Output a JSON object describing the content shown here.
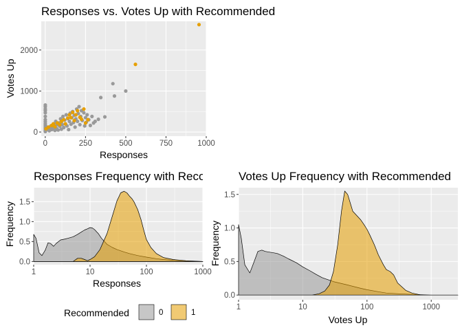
{
  "chart_data": [
    {
      "type": "scatter",
      "title": "Responses vs. Votes Up with Recommended",
      "xlabel": "Responses",
      "ylabel": "Votes Up",
      "xlim": [
        -25,
        1000
      ],
      "ylim": [
        -100,
        2700
      ],
      "xticks": [
        0,
        250,
        500,
        750,
        1000
      ],
      "yticks": [
        0,
        1000,
        2000
      ],
      "grid": true,
      "series": [
        {
          "name": "0",
          "color": "#999999",
          "points": [
            [
              0,
              660
            ],
            [
              0,
              620
            ],
            [
              0,
              560
            ],
            [
              0,
              520
            ],
            [
              0,
              470
            ],
            [
              0,
              380
            ],
            [
              0,
              300
            ],
            [
              0,
              250
            ],
            [
              0,
              200
            ],
            [
              0,
              160
            ],
            [
              0,
              120
            ],
            [
              0,
              80
            ],
            [
              0,
              40
            ],
            [
              0,
              10
            ],
            [
              10,
              120
            ],
            [
              15,
              60
            ],
            [
              20,
              100
            ],
            [
              25,
              30
            ],
            [
              30,
              90
            ],
            [
              35,
              150
            ],
            [
              40,
              60
            ],
            [
              45,
              110
            ],
            [
              50,
              80
            ],
            [
              55,
              200
            ],
            [
              60,
              40
            ],
            [
              60,
              130
            ],
            [
              65,
              260
            ],
            [
              70,
              90
            ],
            [
              75,
              180
            ],
            [
              80,
              50
            ],
            [
              85,
              220
            ],
            [
              90,
              140
            ],
            [
              95,
              320
            ],
            [
              100,
              70
            ],
            [
              100,
              240
            ],
            [
              105,
              180
            ],
            [
              110,
              380
            ],
            [
              115,
              110
            ],
            [
              120,
              290
            ],
            [
              125,
              200
            ],
            [
              130,
              420
            ],
            [
              135,
              150
            ],
            [
              140,
              330
            ],
            [
              145,
              60
            ],
            [
              150,
              260
            ],
            [
              155,
              460
            ],
            [
              160,
              190
            ],
            [
              165,
              350
            ],
            [
              170,
              500
            ],
            [
              175,
              230
            ],
            [
              180,
              410
            ],
            [
              185,
              120
            ],
            [
              190,
              320
            ],
            [
              195,
              560
            ],
            [
              200,
              260
            ],
            [
              205,
              450
            ],
            [
              210,
              620
            ],
            [
              215,
              180
            ],
            [
              220,
              380
            ],
            [
              225,
              520
            ],
            [
              230,
              280
            ],
            [
              240,
              470
            ],
            [
              245,
              150
            ],
            [
              250,
              350
            ],
            [
              255,
              240
            ],
            [
              260,
              420
            ],
            [
              270,
              300
            ],
            [
              280,
              160
            ],
            [
              290,
              380
            ],
            [
              300,
              220
            ],
            [
              310,
              260
            ],
            [
              330,
              310
            ],
            [
              345,
              840
            ],
            [
              370,
              370
            ],
            [
              420,
              1180
            ],
            [
              430,
              880
            ],
            [
              500,
              1000
            ]
          ]
        },
        {
          "name": "1",
          "color": "#E69F00",
          "points": [
            [
              5,
              80
            ],
            [
              20,
              120
            ],
            [
              40,
              160
            ],
            [
              50,
              200
            ],
            [
              60,
              130
            ],
            [
              75,
              220
            ],
            [
              90,
              180
            ],
            [
              100,
              260
            ],
            [
              115,
              300
            ],
            [
              125,
              200
            ],
            [
              140,
              340
            ],
            [
              150,
              420
            ],
            [
              160,
              350
            ],
            [
              170,
              480
            ],
            [
              180,
              280
            ],
            [
              190,
              420
            ],
            [
              200,
              520
            ],
            [
              215,
              360
            ],
            [
              225,
              310
            ],
            [
              240,
              560
            ],
            [
              250,
              220
            ],
            [
              265,
              300
            ],
            [
              560,
              1650
            ],
            [
              955,
              2620
            ]
          ]
        }
      ]
    },
    {
      "type": "area",
      "title": "Responses Frequency with Recommended",
      "xlabel": "Responses",
      "ylabel": "Frequency",
      "xscale": "log10",
      "xlim": [
        1,
        1000
      ],
      "ylim": [
        -0.08,
        1.85
      ],
      "xticks": [
        1,
        10,
        100,
        1000
      ],
      "xtick_labels": [
        "1",
        "10",
        "100",
        "1000"
      ],
      "yticks": [
        0,
        0.5,
        1,
        1.5
      ],
      "ytick_labels": [
        "0.0",
        "0.5",
        "1.0",
        "1.5"
      ],
      "grid": true,
      "series": [
        {
          "name": "0",
          "color": "#999999",
          "x": [
            1,
            1.1,
            1.25,
            1.4,
            1.6,
            1.8,
            2.0,
            2.25,
            2.5,
            3,
            3.5,
            4,
            5,
            6,
            7,
            8,
            9,
            10,
            11,
            12,
            14,
            16,
            20,
            25,
            30,
            40,
            50,
            70,
            100,
            150,
            200,
            300,
            500,
            1000
          ],
          "y": [
            0.68,
            0.58,
            0.22,
            0.15,
            0.28,
            0.47,
            0.45,
            0.38,
            0.45,
            0.54,
            0.56,
            0.58,
            0.62,
            0.68,
            0.74,
            0.79,
            0.82,
            0.85,
            0.84,
            0.8,
            0.7,
            0.58,
            0.43,
            0.35,
            0.3,
            0.24,
            0.2,
            0.15,
            0.11,
            0.07,
            0.05,
            0.03,
            0.01,
            0.0
          ]
        },
        {
          "name": "1",
          "color": "#E69F00",
          "x": [
            1,
            5,
            6,
            7,
            8,
            9,
            10,
            12,
            15,
            20,
            25,
            30,
            35,
            40,
            45,
            50,
            55,
            60,
            70,
            80,
            90,
            100,
            120,
            150,
            200,
            300,
            500,
            1000
          ],
          "y": [
            0,
            0,
            0.08,
            0.08,
            0.05,
            0.02,
            0.05,
            0.12,
            0.3,
            0.7,
            1.15,
            1.52,
            1.72,
            1.76,
            1.72,
            1.64,
            1.58,
            1.5,
            1.3,
            1.05,
            0.78,
            0.55,
            0.35,
            0.2,
            0.1,
            0.05,
            0.02,
            0.0
          ]
        }
      ]
    },
    {
      "type": "area",
      "title": "Votes Up Frequency with Recommended",
      "xlabel": "Votes Up",
      "ylabel": "Frequency",
      "xscale": "log10",
      "xlim": [
        1,
        2600
      ],
      "ylim": [
        -0.07,
        1.6
      ],
      "xticks": [
        1,
        10,
        100,
        1000
      ],
      "xtick_labels": [
        "1",
        "10",
        "100",
        "1000"
      ],
      "yticks": [
        0,
        0.5,
        1,
        1.5
      ],
      "ytick_labels": [
        "0.0",
        "0.5",
        "1.0",
        "1.5"
      ],
      "grid": true,
      "series": [
        {
          "name": "0",
          "color": "#999999",
          "x": [
            1,
            1.1,
            1.25,
            1.5,
            1.75,
            2,
            2.3,
            2.6,
            3,
            3.5,
            4,
            5,
            6,
            8,
            10,
            13,
            16,
            20,
            30,
            50,
            80,
            100,
            150,
            200,
            300,
            500,
            1000,
            2600
          ],
          "y": [
            1.05,
            0.85,
            0.45,
            0.33,
            0.5,
            0.65,
            0.67,
            0.65,
            0.64,
            0.63,
            0.62,
            0.58,
            0.54,
            0.48,
            0.42,
            0.36,
            0.31,
            0.26,
            0.2,
            0.15,
            0.1,
            0.08,
            0.05,
            0.03,
            0.02,
            0.01,
            0.0,
            0.0
          ]
        },
        {
          "name": "1",
          "color": "#E69F00",
          "x": [
            1,
            14,
            18,
            22,
            26,
            30,
            35,
            40,
            45,
            50,
            60,
            70,
            80,
            90,
            100,
            110,
            130,
            150,
            180,
            200,
            230,
            260,
            300,
            400,
            500,
            700,
            2600
          ],
          "y": [
            0,
            0,
            0.02,
            0.06,
            0.15,
            0.35,
            0.75,
            1.25,
            1.55,
            1.5,
            1.25,
            1.18,
            1.12,
            1.05,
            0.98,
            0.9,
            0.75,
            0.6,
            0.45,
            0.38,
            0.35,
            0.3,
            0.18,
            0.07,
            0.03,
            0.0,
            0.0
          ]
        }
      ]
    }
  ],
  "legend": {
    "title": "Recommended",
    "entries": [
      {
        "label": "0",
        "color": "#999999"
      },
      {
        "label": "1",
        "color": "#E69F00"
      }
    ]
  }
}
